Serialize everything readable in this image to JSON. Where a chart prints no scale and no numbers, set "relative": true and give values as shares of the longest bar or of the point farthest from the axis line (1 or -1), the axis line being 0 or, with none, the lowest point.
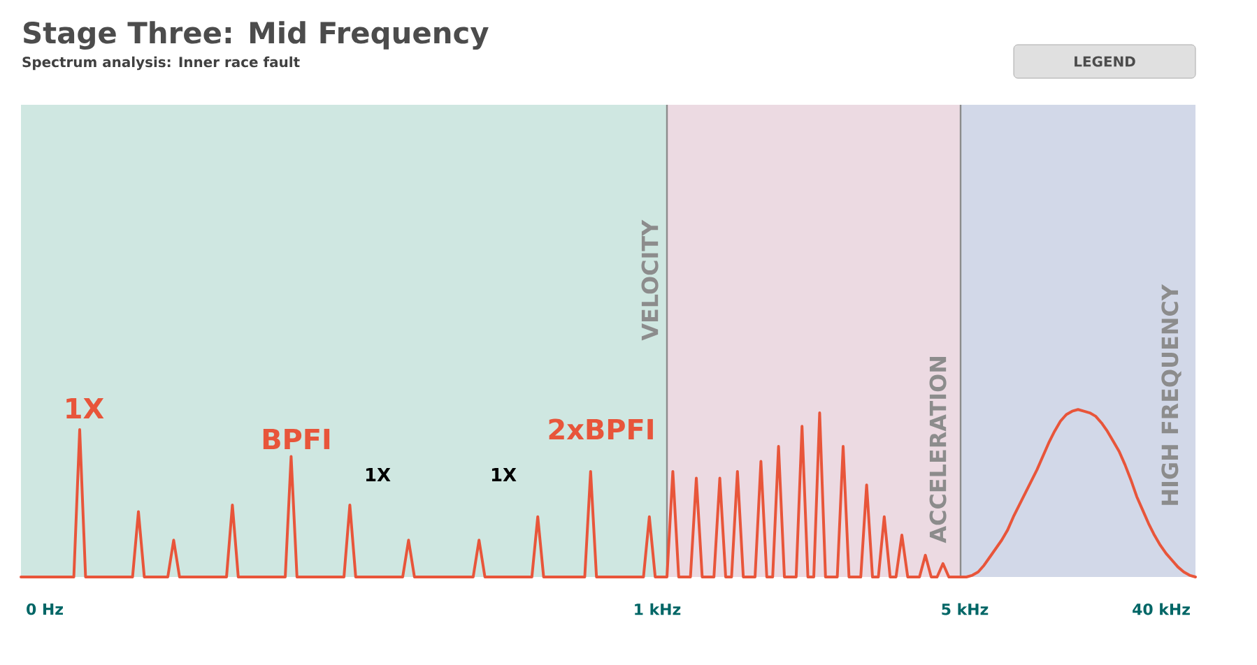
{
  "chart_data": {
    "type": "line",
    "title": "Stage Three: Mid Frequency",
    "subtitle": "Spectrum analysis: Inner race fault",
    "relative": true,
    "color": "#e8553a",
    "categories": [
      null,
      null,
      null,
      null,
      null,
      null,
      null,
      null,
      null,
      null,
      null,
      null,
      null,
      null,
      null,
      null,
      null,
      null,
      null,
      null,
      null,
      null,
      null,
      null,
      null,
      null,
      null,
      null,
      null,
      null,
      null,
      null,
      null,
      null,
      null,
      null,
      null,
      null,
      null,
      null,
      null,
      null,
      null,
      null,
      null,
      null,
      null,
      null,
      null,
      null,
      null,
      null,
      null,
      null,
      null,
      null,
      null,
      null,
      null,
      null,
      null,
      null,
      null,
      null,
      null,
      null,
      null,
      null,
      null,
      null,
      null,
      null,
      null,
      null,
      null,
      null,
      null,
      null,
      null,
      null,
      null,
      null,
      null,
      null,
      null,
      null,
      null,
      null,
      null,
      null,
      null,
      null,
      null,
      null,
      null,
      null,
      null,
      null,
      null,
      null,
      null,
      null,
      null,
      null,
      null,
      null,
      null,
      null,
      null,
      null,
      null,
      null,
      null,
      null,
      null,
      null,
      null,
      null,
      null,
      null,
      null,
      null,
      null,
      null,
      null,
      null,
      null,
      null,
      null,
      null,
      null,
      null,
      null,
      null,
      null,
      null,
      null,
      null,
      null,
      null,
      null,
      null,
      null,
      null,
      null,
      null,
      null,
      null,
      null,
      null,
      null,
      null,
      null,
      null,
      null,
      null,
      null,
      null,
      null,
      null,
      null,
      null,
      null,
      null,
      null,
      null,
      null,
      null,
      null,
      null,
      null,
      null,
      null,
      null,
      null,
      null,
      null,
      null,
      null,
      null,
      null,
      null,
      null,
      null,
      null,
      null,
      null,
      null,
      null,
      null,
      null,
      null,
      null,
      null,
      null,
      null,
      null,
      null,
      null,
      null,
      null
    ],
    "values": [
      0,
      0,
      0,
      0,
      0,
      0,
      0,
      0,
      0,
      0,
      0.88,
      0,
      0,
      0,
      0,
      0,
      0,
      0,
      0,
      0,
      0.39,
      0,
      0,
      0,
      0,
      0,
      0.22,
      0,
      0,
      0,
      0,
      0,
      0,
      0,
      0,
      0,
      0.43,
      0,
      0,
      0,
      0,
      0,
      0,
      0,
      0,
      0,
      0.72,
      0,
      0,
      0,
      0,
      0,
      0,
      0,
      0,
      0,
      0.43,
      0,
      0,
      0,
      0,
      0,
      0,
      0,
      0,
      0,
      0.22,
      0,
      0,
      0,
      0,
      0,
      0,
      0,
      0,
      0,
      0,
      0,
      0.22,
      0,
      0,
      0,
      0,
      0,
      0,
      0,
      0,
      0,
      0.36,
      0,
      0,
      0,
      0,
      0,
      0,
      0,
      0,
      0.63,
      0,
      0,
      0,
      0,
      0,
      0,
      0,
      0,
      0,
      0.36,
      0,
      0,
      0,
      0.63,
      0,
      0,
      0,
      0.59,
      0,
      0,
      0,
      0.59,
      0,
      0,
      0.63,
      0,
      0,
      0,
      0.69,
      0,
      0,
      0.78,
      0,
      0,
      0,
      0.9,
      0,
      0,
      0.98,
      0,
      0,
      0,
      0.78,
      0,
      0,
      0,
      0.55,
      0,
      0,
      0.36,
      0,
      0,
      0.25,
      0,
      0,
      0,
      0.13,
      0,
      0,
      0.08,
      0,
      0,
      0,
      0,
      0.01,
      0.03,
      0.07,
      0.12,
      0.17,
      0.22,
      0.28,
      0.36,
      0.43,
      0.5,
      0.57,
      0.64,
      0.72,
      0.8,
      0.87,
      0.93,
      0.97,
      0.99,
      1.0,
      0.99,
      0.98,
      0.96,
      0.92,
      0.87,
      0.81,
      0.75,
      0.67,
      0.58,
      0.48,
      0.4,
      0.32,
      0.25,
      0.19,
      0.14,
      0.1,
      0.06,
      0.03,
      0.01,
      0
    ],
    "annotations": [
      "1X",
      "BPFI",
      "2xBPFI",
      "1X",
      "1X",
      "LEGEND",
      "0 Hz",
      "1 kHz",
      "5 kHz",
      "40 kHz",
      "VELOCITY",
      "ACCELERATION",
      "HIGH FREQUENCY"
    ]
  }
}
